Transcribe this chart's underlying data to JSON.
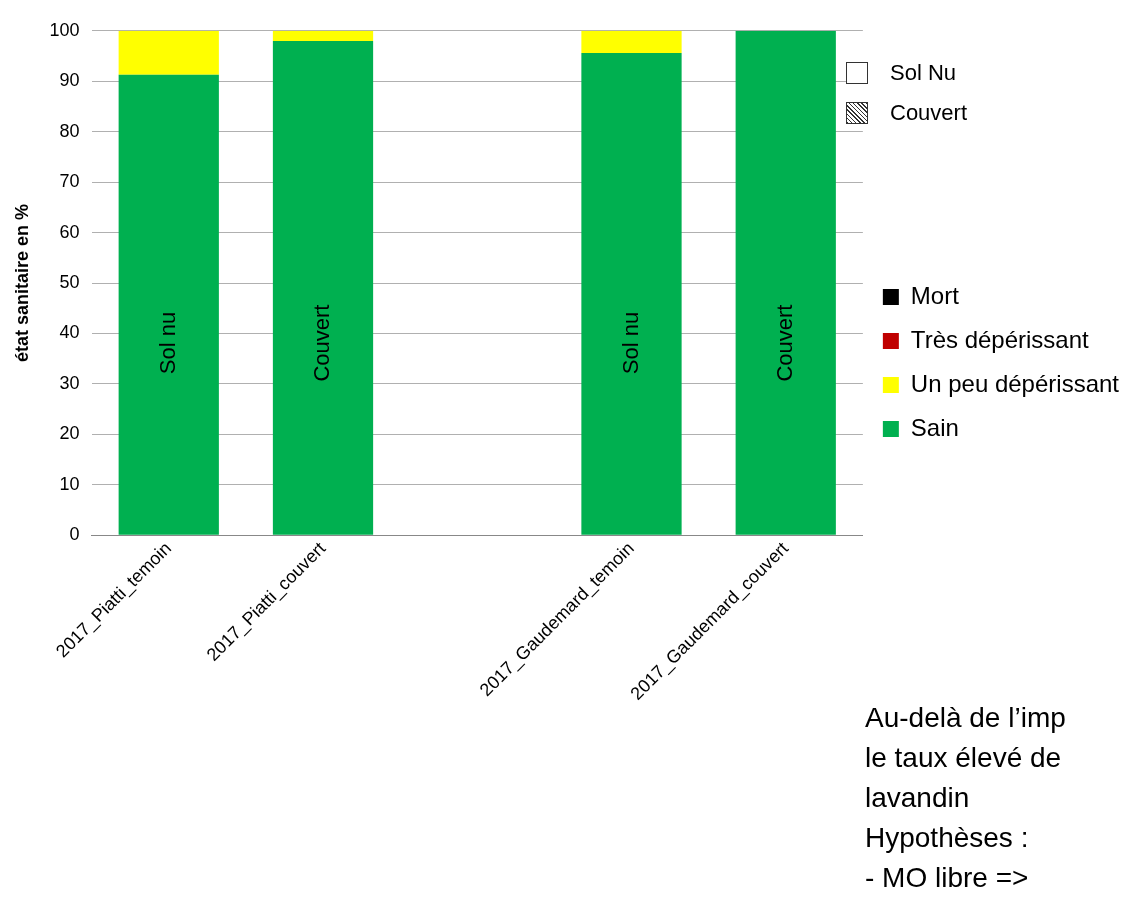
{
  "chart_data": {
    "type": "bar",
    "stacked": true,
    "ylabel": "état sanitaire en %",
    "categories": [
      "2017_Piatti_temoin",
      "2017_Piatti_couvert",
      null,
      "2017_Gaudemard_temoin",
      "2017_Gaudemard_couvert"
    ],
    "series": [
      {
        "name": "Sain",
        "color": "#00b050",
        "values": [
          91.3,
          98,
          null,
          95.6,
          100
        ]
      },
      {
        "name": "Un peu dépérissant",
        "color": "#ffff00",
        "values": [
          8.7,
          2,
          null,
          4.4,
          0
        ]
      },
      {
        "name": "Très dépérissant",
        "color": "#c00000",
        "values": [
          0,
          0,
          null,
          0,
          0
        ]
      },
      {
        "name": "Mort",
        "color": "#000000",
        "values": [
          0,
          0,
          null,
          0,
          0
        ]
      }
    ],
    "ylim": [
      0,
      100
    ],
    "yticks": [
      0,
      10,
      20,
      30,
      40,
      50,
      60,
      70,
      80,
      90,
      100
    ],
    "grid": "y",
    "legend": "right",
    "annotations": [
      "Sol Nu",
      "Couvert",
      "Sol nu",
      "Couvert",
      "Sol nu",
      "Couvert",
      "Au-delà de l’imp",
      "le taux élevé de",
      "lavandin",
      "Hypothèses :",
      "-    MO libre =>"
    ]
  }
}
